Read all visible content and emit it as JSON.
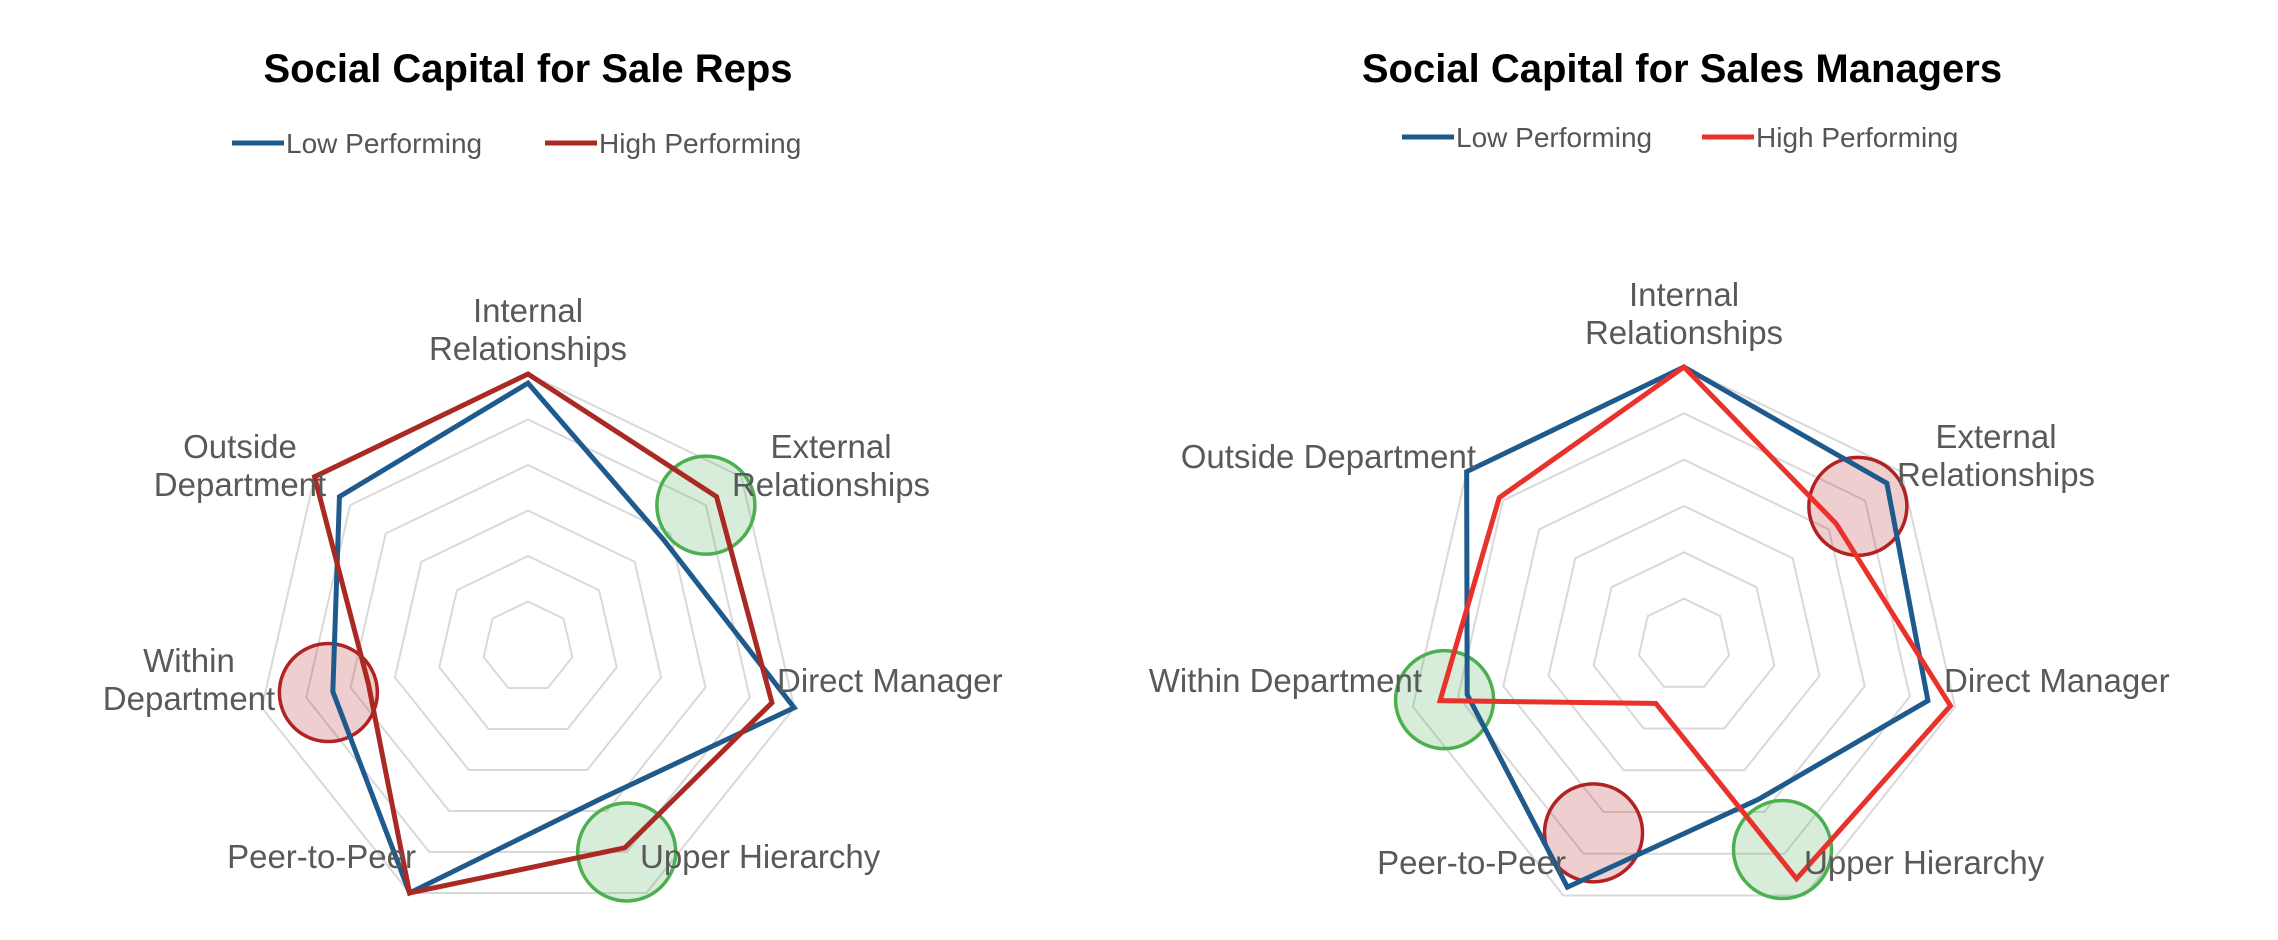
{
  "chart_data": [
    {
      "type": "radar",
      "title": "Social Capital for Sale Reps",
      "axes": [
        [
          "Internal",
          "Relationships"
        ],
        [
          "External",
          "Relationships"
        ],
        [
          "Direct Manager"
        ],
        [
          "Upper Hierarchy"
        ],
        [
          "Peer-to-Peer"
        ],
        [
          "Within",
          "Department"
        ],
        [
          "Outside",
          "Department"
        ]
      ],
      "rlim": [
        0,
        6
      ],
      "grid_rings": 6,
      "legend": "top",
      "series": [
        {
          "name": "Low Performing",
          "color": "#1f5a8c",
          "values": [
            5.8,
            3.8,
            6.0,
            3.7,
            6.0,
            4.4,
            5.3
          ]
        },
        {
          "name": "High Performing",
          "color": "#aa2a23",
          "values": [
            6.0,
            5.3,
            5.5,
            4.9,
            6.0,
            3.6,
            6.0
          ]
        }
      ],
      "highlights": [
        {
          "axis": 1,
          "value": 5.0,
          "color": "#4caf50"
        },
        {
          "axis": 3,
          "value": 5.0,
          "color": "#4caf50"
        },
        {
          "axis": 5,
          "value": 4.5,
          "color": "#b22222"
        }
      ]
    },
    {
      "type": "radar",
      "title": "Social Capital for Sales Managers",
      "axes": [
        [
          "Internal",
          "Relationships"
        ],
        [
          "External",
          "Relationships"
        ],
        [
          "Direct Manager"
        ],
        [
          "Upper Hierarchy"
        ],
        [
          "Peer-to-Peer"
        ],
        [
          "Within Department"
        ],
        [
          "Outside Department"
        ]
      ],
      "rlim": [
        0,
        6
      ],
      "grid_rings": 6,
      "legend": "top",
      "series": [
        {
          "name": "Low Performing",
          "color": "#1f5a8c",
          "values": [
            6.0,
            5.6,
            5.4,
            3.7,
            5.8,
            4.8,
            6.0
          ]
        },
        {
          "name": "High Performing",
          "color": "#e8322b",
          "values": [
            6.0,
            4.2,
            5.9,
            5.6,
            1.4,
            5.4,
            5.1
          ]
        }
      ],
      "highlights": [
        {
          "axis": 1,
          "value": 4.8,
          "color": "#b22222"
        },
        {
          "axis": 3,
          "value": 4.9,
          "color": "#4caf50"
        },
        {
          "axis": 4,
          "value": 4.5,
          "color": "#b22222"
        },
        {
          "axis": 5,
          "value": 5.3,
          "color": "#4caf50"
        }
      ]
    }
  ]
}
